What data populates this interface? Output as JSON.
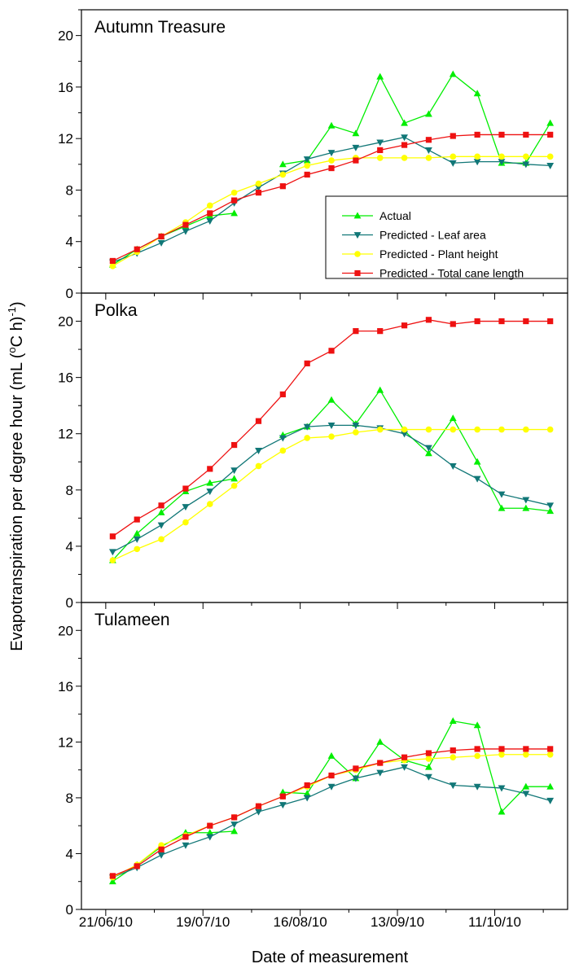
{
  "chart_data": {
    "type": "line",
    "ylabel_main": "Evapotranspiration per degree hour (mL (",
    "ylabel_sup1": "o",
    "ylabel_mid": "C h)",
    "ylabel_sup2": "-1",
    "ylabel_end": ")",
    "xlabel": "Date of measurement",
    "x_tick_labels": [
      "21/06/10",
      "19/07/10",
      "16/08/10",
      "13/09/10",
      "11/10/10"
    ],
    "ylim": [
      0,
      22
    ],
    "y_ticks": [
      "0",
      "4",
      "8",
      "12",
      "16",
      "20"
    ],
    "x_dates": [
      "23/06/10",
      "30/06/10",
      "07/07/10",
      "14/07/10",
      "21/07/10",
      "28/07/10",
      "04/08/10",
      "11/08/10",
      "18/08/10",
      "25/08/10",
      "01/09/10",
      "08/09/10",
      "15/09/10",
      "22/09/10",
      "29/09/10",
      "06/10/10",
      "13/10/10",
      "20/10/10",
      "27/10/10"
    ],
    "legend_entries": [
      "Actual",
      "Predicted - Leaf area",
      "Predicted - Plant height",
      "Predicted - Total cane length"
    ],
    "colors": {
      "actual": "#00ee00",
      "leaf": "#117777",
      "height": "#ffff00",
      "cane": "#ee1111"
    },
    "panels": [
      {
        "title": "Autumn Treasure",
        "series": [
          {
            "name": "Actual",
            "values": [
              2.2,
              3.4,
              4.4,
              5.2,
              6.0,
              6.2,
              null,
              10.0,
              10.3,
              13.0,
              12.4,
              16.8,
              13.2,
              13.9,
              17.0,
              15.5,
              10.1,
              10.1,
              13.2
            ]
          },
          {
            "name": "Predicted - Leaf area",
            "values": [
              2.4,
              3.1,
              3.9,
              4.8,
              5.6,
              7.0,
              8.2,
              9.3,
              10.4,
              10.9,
              11.3,
              11.7,
              12.1,
              11.1,
              10.1,
              10.2,
              10.2,
              10.0,
              9.9
            ]
          },
          {
            "name": "Predicted - Plant height",
            "values": [
              2.1,
              3.2,
              4.4,
              5.5,
              6.8,
              7.8,
              8.5,
              9.2,
              9.9,
              10.3,
              10.5,
              10.5,
              10.5,
              10.5,
              10.6,
              10.6,
              10.6,
              10.6,
              10.6
            ]
          },
          {
            "name": "Predicted - Total cane length",
            "values": [
              2.5,
              3.4,
              4.4,
              5.3,
              6.2,
              7.2,
              7.8,
              8.3,
              9.2,
              9.7,
              10.3,
              11.1,
              11.5,
              11.9,
              12.2,
              12.3,
              12.3,
              12.3,
              12.3
            ]
          }
        ]
      },
      {
        "title": "Polka",
        "series": [
          {
            "name": "Actual",
            "values": [
              3.0,
              4.9,
              6.4,
              7.9,
              8.5,
              8.8,
              null,
              11.9,
              12.5,
              14.4,
              12.7,
              15.1,
              12.2,
              10.6,
              13.1,
              10.0,
              6.7,
              6.7,
              6.5
            ]
          },
          {
            "name": "Predicted - Leaf area",
            "values": [
              3.6,
              4.5,
              5.5,
              6.8,
              7.9,
              9.4,
              10.8,
              11.7,
              12.5,
              12.6,
              12.6,
              12.4,
              12.0,
              11.0,
              9.7,
              8.8,
              7.7,
              7.3,
              6.9
            ]
          },
          {
            "name": "Predicted - Plant height",
            "values": [
              3.0,
              3.8,
              4.5,
              5.7,
              7.0,
              8.3,
              9.7,
              10.8,
              11.7,
              11.8,
              12.1,
              12.3,
              12.3,
              12.3,
              12.3,
              12.3,
              12.3,
              12.3,
              12.3
            ]
          },
          {
            "name": "Predicted - Total cane length",
            "values": [
              4.7,
              5.9,
              6.9,
              8.1,
              9.5,
              11.2,
              12.9,
              14.8,
              17.0,
              17.9,
              19.3,
              19.3,
              19.7,
              20.1,
              19.8,
              20.0,
              20.0,
              20.0,
              20.0
            ]
          }
        ]
      },
      {
        "title": "Tulameen",
        "series": [
          {
            "name": "Actual",
            "values": [
              2.0,
              3.2,
              4.5,
              5.5,
              5.5,
              5.6,
              null,
              8.4,
              8.3,
              11.0,
              9.4,
              12.0,
              10.7,
              10.2,
              13.5,
              13.2,
              7.0,
              8.8,
              8.8
            ]
          },
          {
            "name": "Predicted - Leaf area",
            "values": [
              2.3,
              3.0,
              3.9,
              4.6,
              5.2,
              6.1,
              7.0,
              7.5,
              8.0,
              8.8,
              9.4,
              9.8,
              10.2,
              9.5,
              8.9,
              8.8,
              8.7,
              8.3,
              7.8
            ]
          },
          {
            "name": "Predicted - Plant height",
            "values": [
              2.3,
              3.2,
              4.6,
              5.3,
              6.0,
              6.6,
              7.4,
              8.1,
              8.8,
              9.6,
              10.0,
              10.5,
              10.7,
              10.8,
              10.9,
              11.0,
              11.1,
              11.1,
              11.1
            ]
          },
          {
            "name": "Predicted - Total cane length",
            "values": [
              2.4,
              3.1,
              4.3,
              5.2,
              6.0,
              6.6,
              7.4,
              8.1,
              8.9,
              9.6,
              10.1,
              10.5,
              10.9,
              11.2,
              11.4,
              11.5,
              11.5,
              11.5,
              11.5
            ]
          }
        ]
      }
    ]
  }
}
